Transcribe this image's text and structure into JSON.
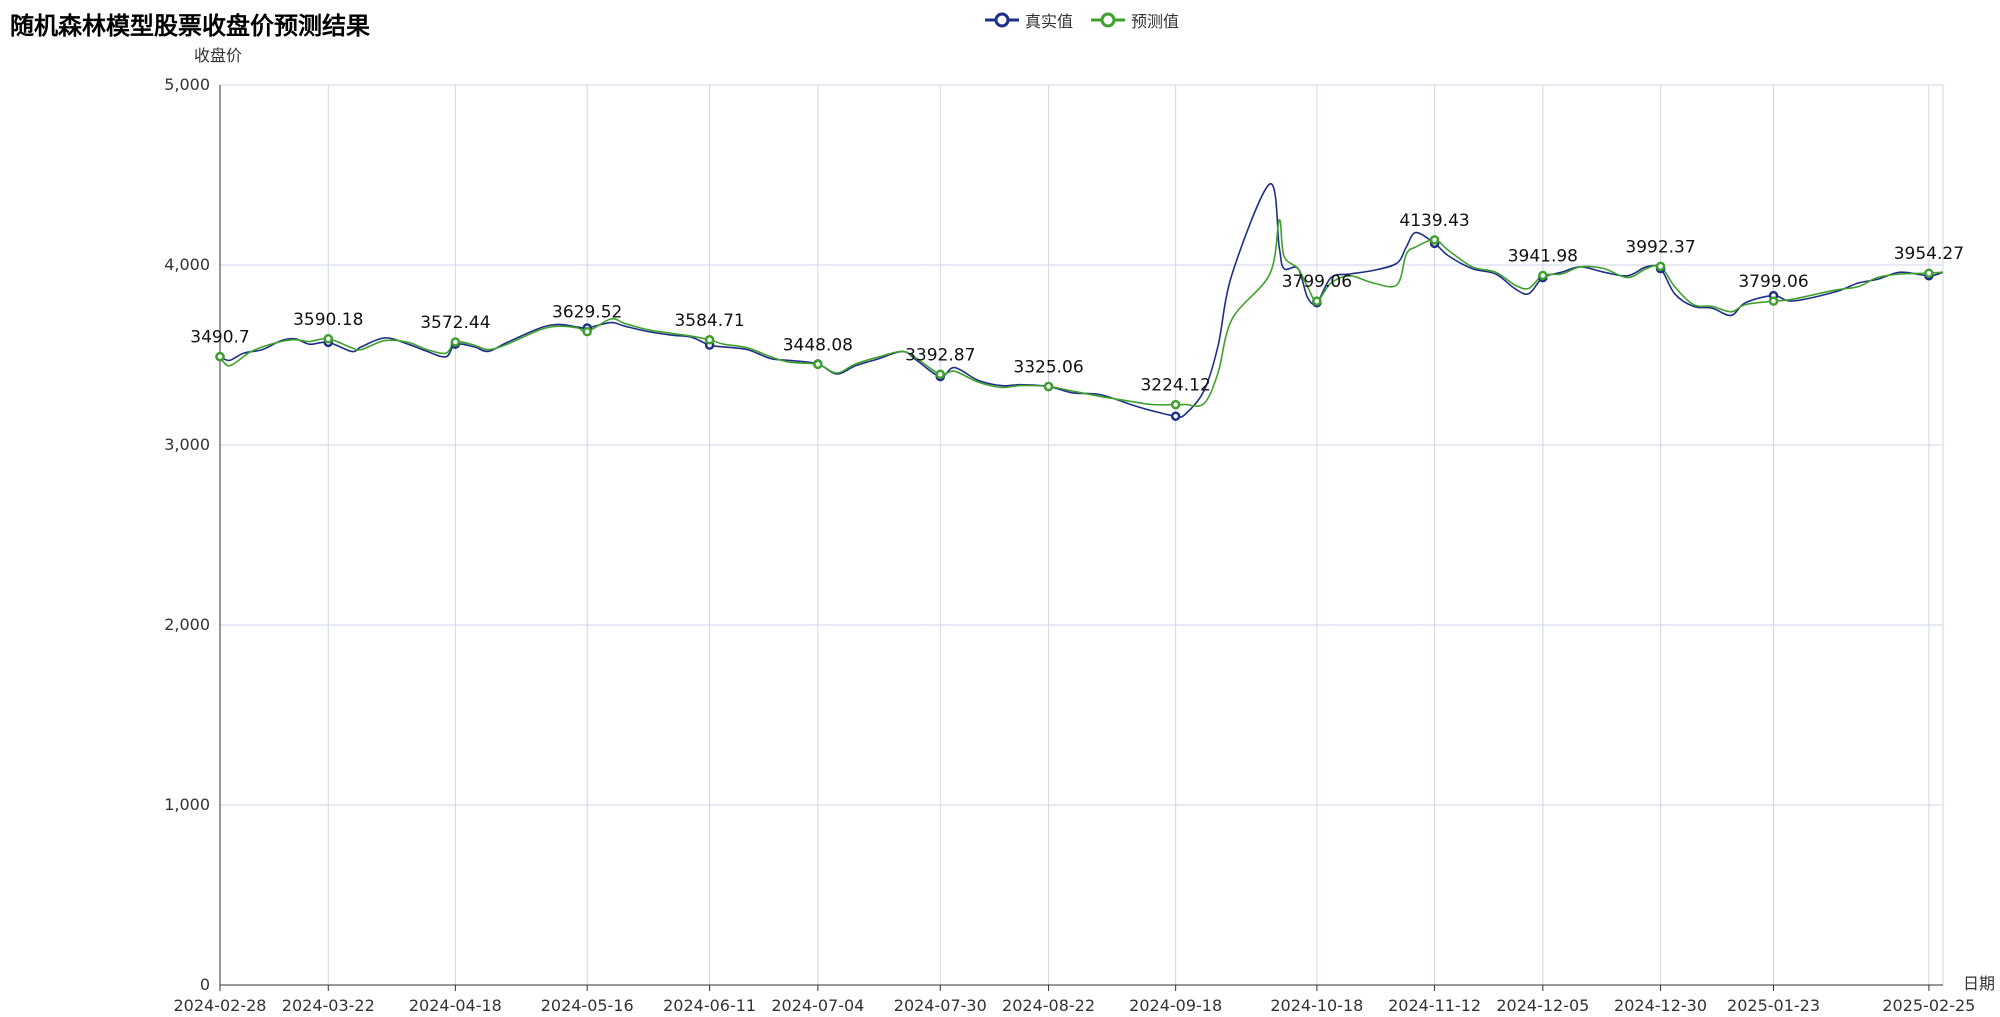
{
  "chart_data": {
    "type": "line",
    "title": "随机森林模型股票收盘价预测结果",
    "xlabel": "日期",
    "ylabel": "收盘价",
    "ylim": [
      0,
      5000
    ],
    "yticks": [
      "0",
      "1,000",
      "2,000",
      "3,000",
      "4,000",
      "5,000"
    ],
    "ytick_values": [
      0,
      1000,
      2000,
      3000,
      4000,
      5000
    ],
    "xlim": [
      "2024-02-28",
      "2025-02-28"
    ],
    "x_ticks": [
      "2024-02-28",
      "2024-03-22",
      "2024-04-18",
      "2024-05-16",
      "2024-06-11",
      "2024-07-04",
      "2024-07-30",
      "2024-08-22",
      "2024-09-18",
      "2024-10-18",
      "2024-11-12",
      "2024-12-05",
      "2024-12-30",
      "2025-01-23",
      "2025-02-25"
    ],
    "grid": true,
    "legend_position": "top-center",
    "series": [
      {
        "name": "真实值",
        "color": "#1f2f87",
        "points": [
          [
            "2024-02-28",
            3490.7
          ],
          [
            "2024-03-01",
            3470
          ],
          [
            "2024-03-04",
            3510
          ],
          [
            "2024-03-08",
            3530
          ],
          [
            "2024-03-12",
            3580
          ],
          [
            "2024-03-15",
            3590
          ],
          [
            "2024-03-18",
            3560
          ],
          [
            "2024-03-22",
            3570
          ],
          [
            "2024-03-27",
            3520
          ],
          [
            "2024-03-29",
            3545
          ],
          [
            "2024-04-03",
            3595
          ],
          [
            "2024-04-08",
            3560
          ],
          [
            "2024-04-12",
            3520
          ],
          [
            "2024-04-16",
            3490
          ],
          [
            "2024-04-18",
            3560
          ],
          [
            "2024-04-22",
            3545
          ],
          [
            "2024-04-25",
            3520
          ],
          [
            "2024-04-29",
            3570
          ],
          [
            "2024-05-06",
            3650
          ],
          [
            "2024-05-10",
            3670
          ],
          [
            "2024-05-14",
            3655
          ],
          [
            "2024-05-16",
            3650
          ],
          [
            "2024-05-21",
            3680
          ],
          [
            "2024-05-24",
            3660
          ],
          [
            "2024-05-29",
            3630
          ],
          [
            "2024-06-03",
            3610
          ],
          [
            "2024-06-07",
            3600
          ],
          [
            "2024-06-11",
            3555
          ],
          [
            "2024-06-14",
            3545
          ],
          [
            "2024-06-19",
            3530
          ],
          [
            "2024-06-24",
            3480
          ],
          [
            "2024-06-28",
            3470
          ],
          [
            "2024-07-04",
            3450
          ],
          [
            "2024-07-08",
            3395
          ],
          [
            "2024-07-12",
            3440
          ],
          [
            "2024-07-17",
            3480
          ],
          [
            "2024-07-22",
            3520
          ],
          [
            "2024-07-25",
            3470
          ],
          [
            "2024-07-30",
            3380
          ],
          [
            "2024-08-02",
            3430
          ],
          [
            "2024-08-07",
            3360
          ],
          [
            "2024-08-12",
            3330
          ],
          [
            "2024-08-16",
            3335
          ],
          [
            "2024-08-22",
            3325
          ],
          [
            "2024-08-27",
            3290
          ],
          [
            "2024-09-02",
            3280
          ],
          [
            "2024-09-09",
            3220
          ],
          [
            "2024-09-13",
            3190
          ],
          [
            "2024-09-18",
            3160
          ],
          [
            "2024-09-20",
            3170
          ],
          [
            "2024-09-24",
            3300
          ],
          [
            "2024-09-27",
            3550
          ],
          [
            "2024-09-30",
            3950
          ],
          [
            "2024-10-08",
            4450
          ],
          [
            "2024-10-10",
            4100
          ],
          [
            "2024-10-11",
            3980
          ],
          [
            "2024-10-14",
            3980
          ],
          [
            "2024-10-16",
            3820
          ],
          [
            "2024-10-18",
            3790
          ],
          [
            "2024-10-21",
            3930
          ],
          [
            "2024-10-25",
            3950
          ],
          [
            "2024-10-30",
            3970
          ],
          [
            "2024-11-04",
            4010
          ],
          [
            "2024-11-06",
            4100
          ],
          [
            "2024-11-08",
            4180
          ],
          [
            "2024-11-12",
            4120
          ],
          [
            "2024-11-15",
            4050
          ],
          [
            "2024-11-20",
            3980
          ],
          [
            "2024-11-25",
            3950
          ],
          [
            "2024-11-29",
            3870
          ],
          [
            "2024-12-02",
            3840
          ],
          [
            "2024-12-05",
            3930
          ],
          [
            "2024-12-09",
            3960
          ],
          [
            "2024-12-13",
            3990
          ],
          [
            "2024-12-18",
            3960
          ],
          [
            "2024-12-23",
            3940
          ],
          [
            "2024-12-27",
            3990
          ],
          [
            "2024-12-30",
            3980
          ],
          [
            "2025-01-02",
            3840
          ],
          [
            "2025-01-06",
            3770
          ],
          [
            "2025-01-10",
            3760
          ],
          [
            "2025-01-14",
            3720
          ],
          [
            "2025-01-17",
            3790
          ],
          [
            "2025-01-23",
            3830
          ],
          [
            "2025-01-27",
            3800
          ],
          [
            "2025-02-05",
            3850
          ],
          [
            "2025-02-10",
            3900
          ],
          [
            "2025-02-14",
            3920
          ],
          [
            "2025-02-19",
            3960
          ],
          [
            "2025-02-25",
            3940
          ],
          [
            "2025-02-28",
            3960
          ]
        ]
      },
      {
        "name": "预测值",
        "color": "#3fa12d",
        "points": [
          [
            "2024-02-28",
            3490.7
          ],
          [
            "2024-03-01",
            3440
          ],
          [
            "2024-03-05",
            3510
          ],
          [
            "2024-03-08",
            3545
          ],
          [
            "2024-03-12",
            3575
          ],
          [
            "2024-03-15",
            3585
          ],
          [
            "2024-03-18",
            3575
          ],
          [
            "2024-03-22",
            3590.18
          ],
          [
            "2024-03-27",
            3540
          ],
          [
            "2024-03-29",
            3530
          ],
          [
            "2024-04-03",
            3580
          ],
          [
            "2024-04-08",
            3570
          ],
          [
            "2024-04-12",
            3530
          ],
          [
            "2024-04-16",
            3510
          ],
          [
            "2024-04-18",
            3572.44
          ],
          [
            "2024-04-22",
            3555
          ],
          [
            "2024-04-25",
            3530
          ],
          [
            "2024-04-29",
            3560
          ],
          [
            "2024-05-06",
            3640
          ],
          [
            "2024-05-10",
            3660
          ],
          [
            "2024-05-14",
            3650
          ],
          [
            "2024-05-16",
            3629.52
          ],
          [
            "2024-05-21",
            3700
          ],
          [
            "2024-05-24",
            3675
          ],
          [
            "2024-05-29",
            3640
          ],
          [
            "2024-06-03",
            3620
          ],
          [
            "2024-06-07",
            3605
          ],
          [
            "2024-06-11",
            3584.71
          ],
          [
            "2024-06-14",
            3560
          ],
          [
            "2024-06-19",
            3540
          ],
          [
            "2024-06-24",
            3490
          ],
          [
            "2024-06-28",
            3460
          ],
          [
            "2024-07-04",
            3448.08
          ],
          [
            "2024-07-08",
            3400
          ],
          [
            "2024-07-12",
            3450
          ],
          [
            "2024-07-17",
            3490
          ],
          [
            "2024-07-22",
            3520
          ],
          [
            "2024-07-25",
            3480
          ],
          [
            "2024-07-30",
            3392.87
          ],
          [
            "2024-08-02",
            3410
          ],
          [
            "2024-08-07",
            3350
          ],
          [
            "2024-08-12",
            3320
          ],
          [
            "2024-08-16",
            3330
          ],
          [
            "2024-08-22",
            3325.06
          ],
          [
            "2024-08-27",
            3300
          ],
          [
            "2024-09-02",
            3270
          ],
          [
            "2024-09-09",
            3240
          ],
          [
            "2024-09-13",
            3225
          ],
          [
            "2024-09-18",
            3224.12
          ],
          [
            "2024-09-20",
            3225
          ],
          [
            "2024-09-24",
            3230
          ],
          [
            "2024-09-27",
            3400
          ],
          [
            "2024-09-30",
            3700
          ],
          [
            "2024-10-08",
            3950
          ],
          [
            "2024-10-10",
            4250
          ],
          [
            "2024-10-11",
            4050
          ],
          [
            "2024-10-14",
            3980
          ],
          [
            "2024-10-16",
            3880
          ],
          [
            "2024-10-18",
            3799.06
          ],
          [
            "2024-10-21",
            3900
          ],
          [
            "2024-10-25",
            3940
          ],
          [
            "2024-10-30",
            3900
          ],
          [
            "2024-11-04",
            3890
          ],
          [
            "2024-11-06",
            4060
          ],
          [
            "2024-11-08",
            4100
          ],
          [
            "2024-11-12",
            4139.43
          ],
          [
            "2024-11-15",
            4080
          ],
          [
            "2024-11-20",
            3990
          ],
          [
            "2024-11-25",
            3960
          ],
          [
            "2024-11-29",
            3890
          ],
          [
            "2024-12-02",
            3870
          ],
          [
            "2024-12-05",
            3941.98
          ],
          [
            "2024-12-09",
            3950
          ],
          [
            "2024-12-13",
            3990
          ],
          [
            "2024-12-18",
            3980
          ],
          [
            "2024-12-23",
            3930
          ],
          [
            "2024-12-27",
            3980
          ],
          [
            "2024-12-30",
            3992.37
          ],
          [
            "2025-01-02",
            3880
          ],
          [
            "2025-01-06",
            3780
          ],
          [
            "2025-01-10",
            3770
          ],
          [
            "2025-01-14",
            3740
          ],
          [
            "2025-01-17",
            3780
          ],
          [
            "2025-01-23",
            3799.06
          ],
          [
            "2025-01-27",
            3810
          ],
          [
            "2025-02-05",
            3860
          ],
          [
            "2025-02-10",
            3880
          ],
          [
            "2025-02-14",
            3930
          ],
          [
            "2025-02-19",
            3950
          ],
          [
            "2025-02-25",
            3954.27
          ],
          [
            "2025-02-28",
            3960
          ]
        ]
      }
    ],
    "data_labels": [
      {
        "date": "2024-02-28",
        "value": 3490.7,
        "text": "3490.7"
      },
      {
        "date": "2024-03-22",
        "value": 3590.18,
        "text": "3590.18"
      },
      {
        "date": "2024-04-18",
        "value": 3572.44,
        "text": "3572.44"
      },
      {
        "date": "2024-05-16",
        "value": 3629.52,
        "text": "3629.52"
      },
      {
        "date": "2024-06-11",
        "value": 3584.71,
        "text": "3584.71"
      },
      {
        "date": "2024-07-04",
        "value": 3448.08,
        "text": "3448.08"
      },
      {
        "date": "2024-07-30",
        "value": 3392.87,
        "text": "3392.87"
      },
      {
        "date": "2024-08-22",
        "value": 3325.06,
        "text": "3325.06"
      },
      {
        "date": "2024-09-18",
        "value": 3224.12,
        "text": "3224.12"
      },
      {
        "date": "2024-10-18",
        "value": 3799.06,
        "text": "3799.06"
      },
      {
        "date": "2024-11-12",
        "value": 4139.43,
        "text": "4139.43"
      },
      {
        "date": "2024-12-05",
        "value": 3941.98,
        "text": "3941.98"
      },
      {
        "date": "2024-12-30",
        "value": 3992.37,
        "text": "3992.37"
      },
      {
        "date": "2025-01-23",
        "value": 3799.06,
        "text": "3799.06"
      },
      {
        "date": "2025-02-25",
        "value": 3954.27,
        "text": "3954.27"
      }
    ]
  }
}
